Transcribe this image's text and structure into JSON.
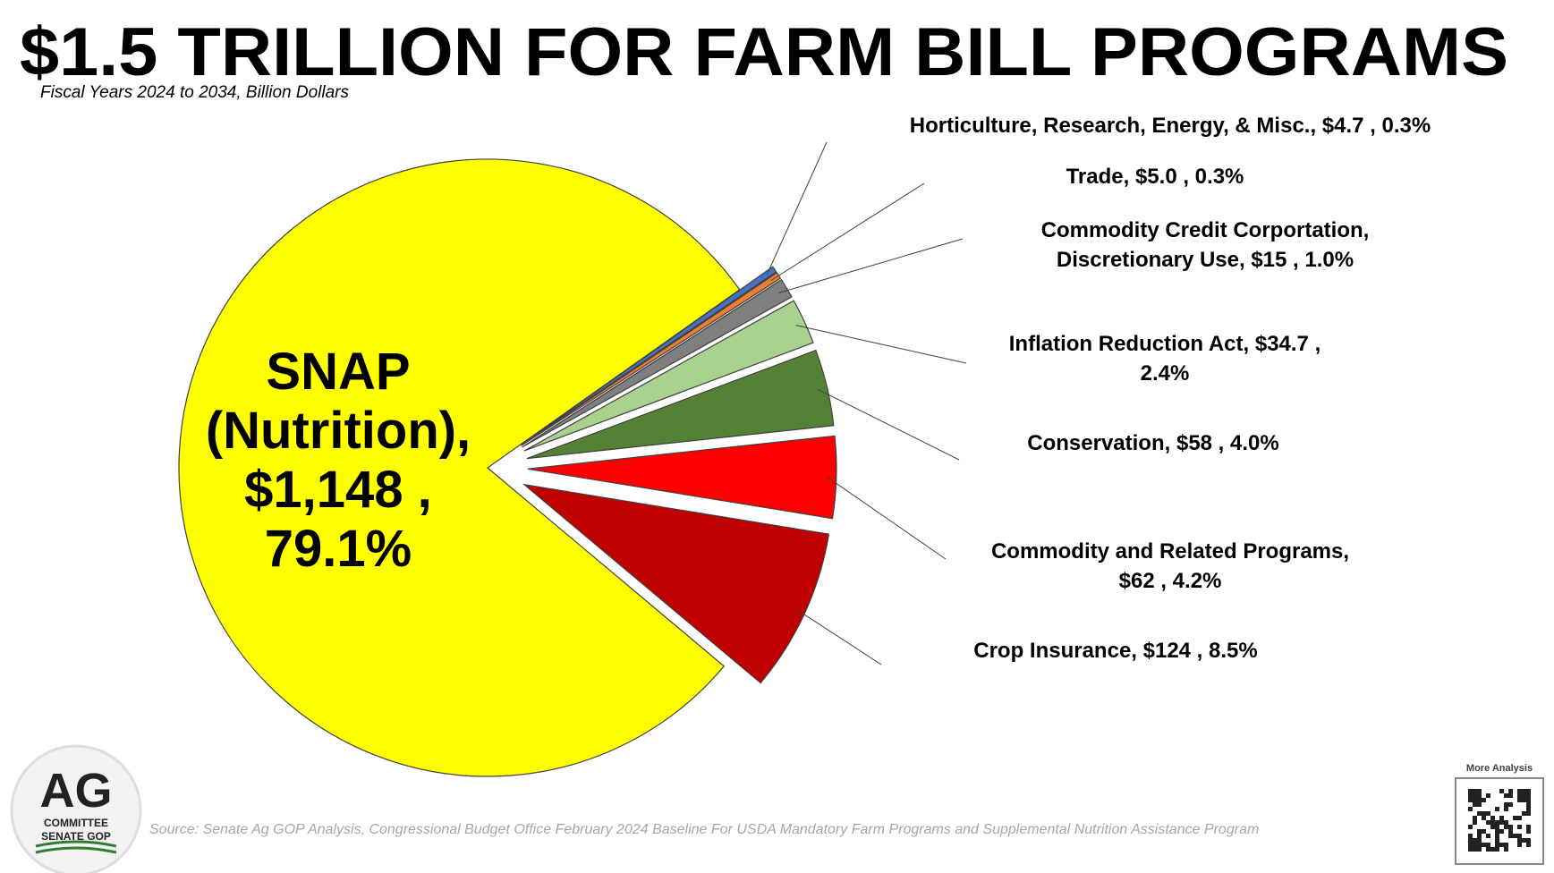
{
  "chart_data": {
    "type": "pie",
    "title": "$1.5 TRILLION FOR FARM BILL PROGRAMS",
    "subtitle": "Fiscal Years 2024 to 2034, Billion Dollars",
    "source": "Source: Senate Ag GOP Analysis, Congressional Budget Office February 2024 Baseline For USDA Mandatory Farm Programs and Supplemental Nutrition Assistance Program",
    "categories": [
      "SNAP (Nutrition)",
      "Horticulture, Research, Energy, & Misc.",
      "Trade",
      "Commodity Credit Corportation, Discretionary Use",
      "Inflation Reduction Act",
      "Conservation",
      "Commodity and Related Programs",
      "Crop Insurance"
    ],
    "values": [
      1148,
      4.7,
      5.0,
      15,
      34.7,
      58,
      62,
      124
    ],
    "labels": [
      [
        "SNAP",
        "(Nutrition),",
        "$1,148 ,",
        "79.1%"
      ],
      [
        "Horticulture, Research, Energy, & Misc.,  $4.7 , 0.3%"
      ],
      [
        "Trade,  $5.0 , 0.3%"
      ],
      [
        "Commodity Credit Corportation,",
        "Discretionary Use,  $15 , 1.0%"
      ],
      [
        "Inflation Reduction Act,  $34.7 ,",
        "2.4%"
      ],
      [
        "Conservation,  $58 , 4.0%"
      ],
      [
        "Commodity and Related Programs,",
        "$62 , 4.2%"
      ],
      [
        "Crop Insurance,  $124 , 8.5%"
      ]
    ],
    "colors": [
      "#ffff00",
      "#4472c4",
      "#ed7d31",
      "#7f7f7f",
      "#a9d18e",
      "#548235",
      "#ff0000",
      "#c00000"
    ]
  },
  "logo": {
    "title": "AG",
    "lines": [
      "COMMITTEE",
      "SENATE GOP"
    ]
  },
  "qr_caption": "More Analysis"
}
